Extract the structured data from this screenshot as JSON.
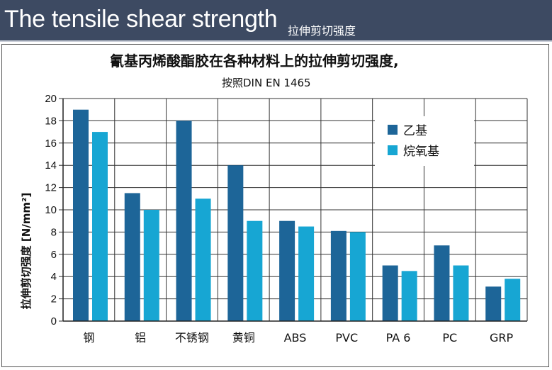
{
  "header": {
    "title": "The tensile shear strength",
    "subtitle": "拉伸剪切强度"
  },
  "colors": {
    "header_bg": "#3d4a62",
    "series_1": "#1d6598",
    "series_2": "#17a6d3"
  },
  "chart_data": {
    "type": "bar",
    "title": "氰基丙烯酸酯胶在各种材料上的拉伸剪切强度,",
    "subtitle": "按照DIN EN 1465",
    "ylabel": "拉伸剪切强度 [N/mm²]",
    "xlabel": "",
    "ylim": [
      0,
      20
    ],
    "yticks": [
      "0",
      "2",
      "4",
      "6",
      "8",
      "10",
      "12",
      "14",
      "16",
      "18",
      "20"
    ],
    "grid": true,
    "legend_position": "top-right",
    "categories": [
      "钢",
      "铝",
      "不锈钢",
      "黄铜",
      "ABS",
      "PVC",
      "PA 6",
      "PC",
      "GRP"
    ],
    "series": [
      {
        "name": "乙基",
        "values": [
          19,
          11.5,
          18,
          14,
          9,
          8.1,
          5,
          6.8,
          3.1
        ]
      },
      {
        "name": "烷氧基",
        "values": [
          17,
          10,
          11,
          9,
          8.5,
          8,
          4.5,
          5,
          3.8
        ]
      }
    ]
  }
}
